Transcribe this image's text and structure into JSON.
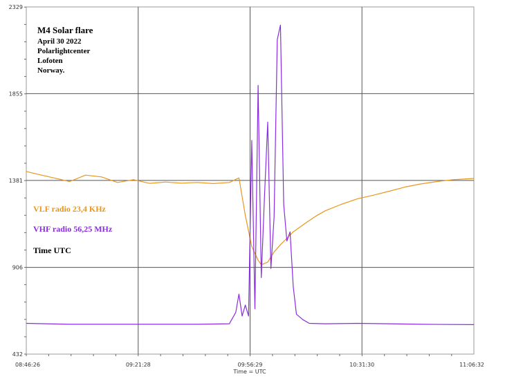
{
  "chart_data": {
    "type": "line",
    "title_lines": [
      "M4 Solar flare",
      "April 30 2022",
      "Polarlightcenter",
      "Lofoten",
      "Norway."
    ],
    "xlabel": "Time = UTC",
    "x_ticks": [
      "08:46:26",
      "09:21:28",
      "09:56:29",
      "10:31:30",
      "11:06:32"
    ],
    "y_ticks": [
      2329,
      1855,
      1381,
      906,
      432
    ],
    "ylim": [
      432,
      2329
    ],
    "x_range": [
      "08:46:26",
      "11:06:32"
    ],
    "grid": true,
    "colors": {
      "vlf": "#e8961c",
      "vhf": "#8a2be2",
      "grid": "#555555"
    },
    "series": [
      {
        "name": "VLF radio 23,4 KHz",
        "x": [
          "08:46:26",
          "08:50:00",
          "08:55:00",
          "09:00:00",
          "09:05:00",
          "09:10:00",
          "09:15:00",
          "09:20:00",
          "09:25:00",
          "09:30:00",
          "09:35:00",
          "09:40:00",
          "09:45:00",
          "09:50:00",
          "09:53:00",
          "09:55:00",
          "09:57:00",
          "09:59:00",
          "10:00:00",
          "10:02:00",
          "10:04:00",
          "10:06:00",
          "10:08:00",
          "10:10:00",
          "10:12:00",
          "10:14:00",
          "10:17:00",
          "10:20:00",
          "10:25:00",
          "10:30:00",
          "10:35:00",
          "10:40:00",
          "10:45:00",
          "10:50:00",
          "10:55:00",
          "11:00:00",
          "11:06:32"
        ],
        "values": [
          1430,
          1415,
          1395,
          1375,
          1410,
          1400,
          1370,
          1385,
          1365,
          1372,
          1366,
          1370,
          1364,
          1370,
          1395,
          1190,
          1020,
          945,
          920,
          935,
          990,
          1030,
          1065,
          1100,
          1125,
          1150,
          1185,
          1215,
          1250,
          1280,
          1300,
          1322,
          1345,
          1362,
          1375,
          1385,
          1392
        ]
      },
      {
        "name": "VHF radio 56,25 MHz",
        "x": [
          "08:46:26",
          "09:00:00",
          "09:20:00",
          "09:40:00",
          "09:50:00",
          "09:52:00",
          "09:53:00",
          "09:54:00",
          "09:55:00",
          "09:56:00",
          "09:57:00",
          "09:58:00",
          "09:59:00",
          "10:00:00",
          "10:01:00",
          "10:02:00",
          "10:03:00",
          "10:04:00",
          "10:05:00",
          "10:06:00",
          "10:07:00",
          "10:08:00",
          "10:09:00",
          "10:10:00",
          "10:11:00",
          "10:13:00",
          "10:15:00",
          "10:20:00",
          "10:30:00",
          "10:40:00",
          "10:50:00",
          "11:06:32"
        ],
        "values": [
          600,
          595,
          595,
          595,
          598,
          660,
          760,
          640,
          700,
          640,
          1600,
          680,
          1900,
          850,
          1300,
          1700,
          900,
          1180,
          2150,
          2230,
          1250,
          1050,
          1100,
          800,
          650,
          620,
          600,
          598,
          600,
          598,
          595,
          593
        ]
      }
    ]
  }
}
